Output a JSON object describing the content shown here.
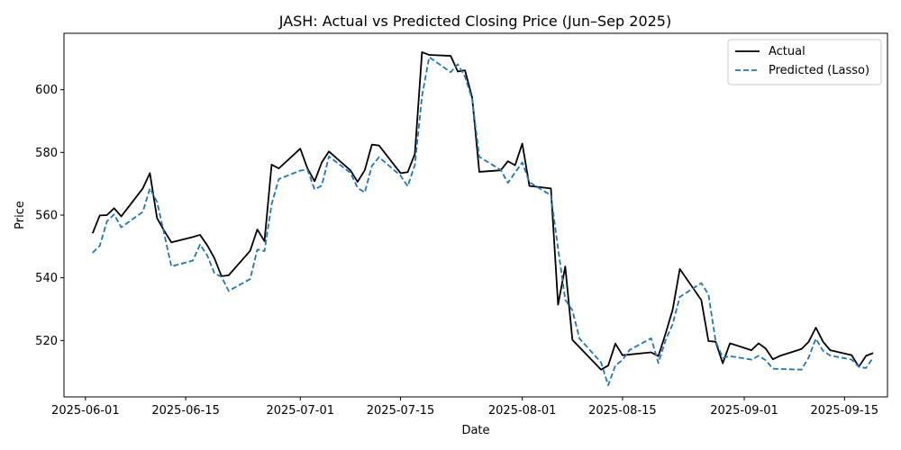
{
  "chart_data": {
    "type": "line",
    "title": "JASH: Actual vs Predicted Closing Price (Jun–Sep 2025)",
    "xlabel": "Date",
    "ylabel": "Price",
    "xlim": [
      "2025-05-29",
      "2025-09-21"
    ],
    "ylim": [
      502,
      618
    ],
    "x_ticks": [
      "2025-06-01",
      "2025-06-15",
      "2025-07-01",
      "2025-07-15",
      "2025-08-01",
      "2025-08-15",
      "2025-09-01",
      "2025-09-15"
    ],
    "y_ticks": [
      520,
      540,
      560,
      580,
      600
    ],
    "grid": false,
    "legend_position": "top-right",
    "series": [
      {
        "name": "Actual",
        "color": "#000000",
        "dash": "solid",
        "points": [
          [
            "2025-06-02",
            554.2
          ],
          [
            "2025-06-03",
            559.9
          ],
          [
            "2025-06-04",
            560.0
          ],
          [
            "2025-06-05",
            562.2
          ],
          [
            "2025-06-06",
            559.6
          ],
          [
            "2025-06-09",
            568.5
          ],
          [
            "2025-06-10",
            573.4
          ],
          [
            "2025-06-11",
            559.0
          ],
          [
            "2025-06-12",
            555.0
          ],
          [
            "2025-06-13",
            551.3
          ],
          [
            "2025-06-16",
            553.0
          ],
          [
            "2025-06-17",
            553.7
          ],
          [
            "2025-06-18",
            550.4
          ],
          [
            "2025-06-19",
            546.3
          ],
          [
            "2025-06-20",
            540.5
          ],
          [
            "2025-06-21",
            540.8
          ],
          [
            "2025-06-24",
            548.6
          ],
          [
            "2025-06-25",
            555.4
          ],
          [
            "2025-06-26",
            551.7
          ],
          [
            "2025-06-27",
            576.1
          ],
          [
            "2025-06-28",
            574.9
          ],
          [
            "2025-07-01",
            581.2
          ],
          [
            "2025-07-02",
            574.9
          ],
          [
            "2025-07-03",
            570.8
          ],
          [
            "2025-07-04",
            576.8
          ],
          [
            "2025-07-05",
            580.3
          ],
          [
            "2025-07-08",
            574.3
          ],
          [
            "2025-07-09",
            570.6
          ],
          [
            "2025-07-10",
            574.3
          ],
          [
            "2025-07-11",
            582.5
          ],
          [
            "2025-07-12",
            582.2
          ],
          [
            "2025-07-15",
            573.4
          ],
          [
            "2025-07-16",
            573.7
          ],
          [
            "2025-07-17",
            579.5
          ],
          [
            "2025-07-18",
            612.0
          ],
          [
            "2025-07-19",
            611.1
          ],
          [
            "2025-07-22",
            610.8
          ],
          [
            "2025-07-23",
            605.8
          ],
          [
            "2025-07-24",
            606.2
          ],
          [
            "2025-07-25",
            597.5
          ],
          [
            "2025-07-26",
            573.8
          ],
          [
            "2025-07-29",
            574.3
          ],
          [
            "2025-07-30",
            577.2
          ],
          [
            "2025-07-31",
            575.9
          ],
          [
            "2025-08-01",
            582.8
          ],
          [
            "2025-08-02",
            569.3
          ],
          [
            "2025-08-05",
            568.5
          ],
          [
            "2025-08-06",
            531.4
          ],
          [
            "2025-08-07",
            543.6
          ],
          [
            "2025-08-08",
            520.2
          ],
          [
            "2025-08-12",
            510.7
          ],
          [
            "2025-08-13",
            512.0
          ],
          [
            "2025-08-14",
            519.0
          ],
          [
            "2025-08-15",
            515.3
          ],
          [
            "2025-08-19",
            516.2
          ],
          [
            "2025-08-20",
            515.0
          ],
          [
            "2025-08-21",
            522.1
          ],
          [
            "2025-08-22",
            529.8
          ],
          [
            "2025-08-23",
            542.8
          ],
          [
            "2025-08-26",
            532.9
          ],
          [
            "2025-08-27",
            519.8
          ],
          [
            "2025-08-28",
            519.6
          ],
          [
            "2025-08-29",
            512.7
          ],
          [
            "2025-08-30",
            519.1
          ],
          [
            "2025-09-02",
            516.9
          ],
          [
            "2025-09-03",
            519.1
          ],
          [
            "2025-09-04",
            517.4
          ],
          [
            "2025-09-05",
            514.0
          ],
          [
            "2025-09-06",
            515.1
          ],
          [
            "2025-09-09",
            517.3
          ],
          [
            "2025-09-10",
            519.6
          ],
          [
            "2025-09-11",
            524.1
          ],
          [
            "2025-09-12",
            519.6
          ],
          [
            "2025-09-13",
            516.9
          ],
          [
            "2025-09-16",
            515.3
          ],
          [
            "2025-09-17",
            511.6
          ],
          [
            "2025-09-18",
            515.1
          ],
          [
            "2025-09-19",
            516.0
          ]
        ]
      },
      {
        "name": "Predicted (Lasso)",
        "color": "#1f77b4",
        "dash": "dashed",
        "points": [
          [
            "2025-06-02",
            548.0
          ],
          [
            "2025-06-03",
            550.2
          ],
          [
            "2025-06-04",
            558.0
          ],
          [
            "2025-06-05",
            560.2
          ],
          [
            "2025-06-06",
            556.1
          ],
          [
            "2025-06-09",
            561.0
          ],
          [
            "2025-06-10",
            568.5
          ],
          [
            "2025-06-11",
            564.2
          ],
          [
            "2025-06-12",
            554.0
          ],
          [
            "2025-06-13",
            543.6
          ],
          [
            "2025-06-16",
            545.5
          ],
          [
            "2025-06-17",
            550.6
          ],
          [
            "2025-06-18",
            547.2
          ],
          [
            "2025-06-19",
            541.5
          ],
          [
            "2025-06-20",
            540.3
          ],
          [
            "2025-06-21",
            535.8
          ],
          [
            "2025-06-24",
            539.6
          ],
          [
            "2025-06-25",
            549.0
          ],
          [
            "2025-06-26",
            548.5
          ],
          [
            "2025-06-27",
            563.5
          ],
          [
            "2025-06-28",
            571.5
          ],
          [
            "2025-07-01",
            574.2
          ],
          [
            "2025-07-02",
            574.5
          ],
          [
            "2025-07-03",
            568.2
          ],
          [
            "2025-07-04",
            569.4
          ],
          [
            "2025-07-05",
            578.7
          ],
          [
            "2025-07-08",
            573.5
          ],
          [
            "2025-07-09",
            568.7
          ],
          [
            "2025-07-10",
            567.2
          ],
          [
            "2025-07-11",
            575.7
          ],
          [
            "2025-07-12",
            578.5
          ],
          [
            "2025-07-15",
            572.6
          ],
          [
            "2025-07-16",
            569.2
          ],
          [
            "2025-07-17",
            576.0
          ],
          [
            "2025-07-18",
            598.0
          ],
          [
            "2025-07-19",
            610.4
          ],
          [
            "2025-07-22",
            605.6
          ],
          [
            "2025-07-23",
            608.1
          ],
          [
            "2025-07-24",
            604.2
          ],
          [
            "2025-07-25",
            597.0
          ],
          [
            "2025-07-26",
            578.6
          ],
          [
            "2025-07-29",
            574.4
          ],
          [
            "2025-07-30",
            570.3
          ],
          [
            "2025-07-31",
            573.6
          ],
          [
            "2025-08-01",
            576.8
          ],
          [
            "2025-08-02",
            570.5
          ],
          [
            "2025-08-05",
            566.3
          ],
          [
            "2025-08-06",
            549.3
          ],
          [
            "2025-08-07",
            533.0
          ],
          [
            "2025-08-08",
            529.6
          ],
          [
            "2025-08-09",
            520.6
          ],
          [
            "2025-08-12",
            513.0
          ],
          [
            "2025-08-13",
            505.7
          ],
          [
            "2025-08-14",
            512.0
          ],
          [
            "2025-08-15",
            513.8
          ],
          [
            "2025-08-16",
            517.0
          ],
          [
            "2025-08-19",
            520.7
          ],
          [
            "2025-08-20",
            512.8
          ],
          [
            "2025-08-21",
            520.0
          ],
          [
            "2025-08-22",
            525.2
          ],
          [
            "2025-08-23",
            533.9
          ],
          [
            "2025-08-26",
            538.3
          ],
          [
            "2025-08-27",
            534.7
          ],
          [
            "2025-08-28",
            519.8
          ],
          [
            "2025-08-29",
            514.5
          ],
          [
            "2025-08-30",
            515.0
          ],
          [
            "2025-09-02",
            513.9
          ],
          [
            "2025-09-03",
            515.1
          ],
          [
            "2025-09-04",
            513.7
          ],
          [
            "2025-09-05",
            511.0
          ],
          [
            "2025-09-06",
            510.9
          ],
          [
            "2025-09-09",
            510.7
          ],
          [
            "2025-09-10",
            514.6
          ],
          [
            "2025-09-11",
            520.6
          ],
          [
            "2025-09-12",
            516.7
          ],
          [
            "2025-09-13",
            515.2
          ],
          [
            "2025-09-16",
            513.9
          ],
          [
            "2025-09-17",
            511.6
          ],
          [
            "2025-09-18",
            511.2
          ],
          [
            "2025-09-19",
            514.6
          ]
        ]
      }
    ]
  }
}
